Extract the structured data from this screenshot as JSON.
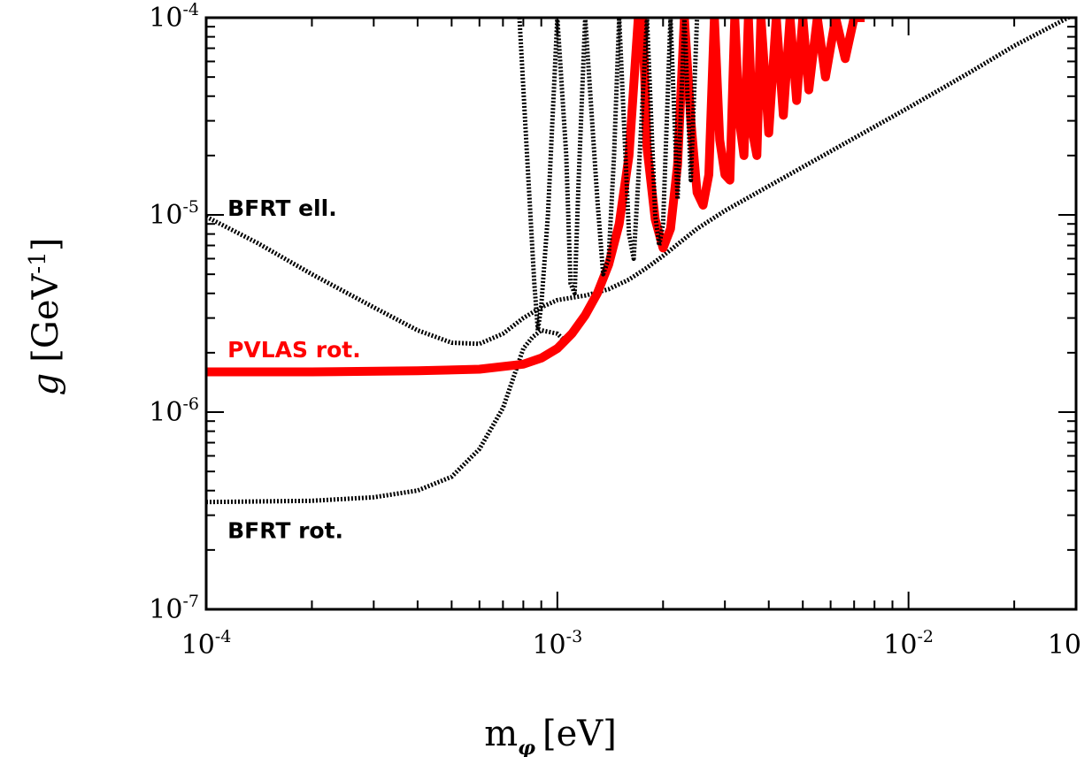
{
  "chart_data": {
    "type": "line",
    "xscale": "log",
    "yscale": "log",
    "xlim": [
      0.0001,
      0.03
    ],
    "ylim": [
      1e-07,
      0.0001
    ],
    "grid": false,
    "xlabel": {
      "main": "m",
      "sub": "φ",
      "unit": "[eV]"
    },
    "ylabel": {
      "main": "g",
      "unit": "[GeV",
      "sup": "-1",
      "close": "]"
    },
    "x_ticks": [
      {
        "value": 0.0001,
        "base": "10",
        "exp": "-4"
      },
      {
        "value": 0.001,
        "base": "10",
        "exp": "-3"
      },
      {
        "value": 0.01,
        "base": "10",
        "exp": "-2"
      },
      {
        "value": 0.03,
        "base": "10",
        "exp": ""
      }
    ],
    "y_ticks": [
      {
        "value": 1e-07,
        "base": "10",
        "exp": "-7"
      },
      {
        "value": 1e-06,
        "base": "10",
        "exp": "-6"
      },
      {
        "value": 1e-05,
        "base": "10",
        "exp": "-5"
      },
      {
        "value": 0.0001,
        "base": "10",
        "exp": "-4"
      }
    ],
    "annotations": [
      {
        "text": "BFRT ell.",
        "x": 0.000115,
        "y": 9.9e-06,
        "color": "#000000"
      },
      {
        "text": "PVLAS rot.",
        "x": 0.000115,
        "y": 1.9e-06,
        "color": "#ff0000"
      },
      {
        "text": "BFRT rot.",
        "x": 0.000115,
        "y": 2.3e-07,
        "color": "#000000"
      }
    ],
    "series": [
      {
        "label": "BFRT ell.",
        "color": "#000000",
        "style": "dotted",
        "x": [
          0.0001,
          0.00014,
          0.0002,
          0.0003,
          0.0004,
          0.0005,
          0.0006,
          0.0007,
          0.0008,
          0.0009,
          0.001,
          0.0012,
          0.0014,
          0.0016,
          0.0018,
          0.002,
          0.0025,
          0.003,
          0.004,
          0.005,
          0.007,
          0.01,
          0.015,
          0.02,
          0.03
        ],
        "y": [
          9.8e-06,
          7.2e-06,
          5e-06,
          3.4e-06,
          2.6e-06,
          2.25e-06,
          2.22e-06,
          2.5e-06,
          3e-06,
          3.4e-06,
          3.7e-06,
          3.9e-06,
          4.2e-06,
          4.7e-06,
          5.4e-06,
          6.2e-06,
          8.5e-06,
          1.05e-05,
          1.4e-05,
          1.75e-05,
          2.45e-05,
          3.5e-05,
          5.3e-05,
          7.2e-05,
          0.000105
        ]
      },
      {
        "label": "BFRT rot.",
        "color": "#000000",
        "style": "dotted",
        "x": [
          0.0001,
          0.0002,
          0.0003,
          0.0004,
          0.0005,
          0.0006,
          0.0007,
          0.00075,
          0.0008,
          0.00085,
          0.0009,
          0.001,
          0.00105
        ],
        "y": [
          3.5e-07,
          3.55e-07,
          3.7e-07,
          4e-07,
          4.7e-07,
          6.5e-07,
          1.05e-06,
          1.5e-06,
          2.1e-06,
          2.4e-06,
          2.6e-06,
          2.5e-06,
          2.3e-06
        ]
      },
      {
        "label": "PVLAS rot.",
        "color": "#ff0000",
        "style": "solid",
        "x": [
          0.0001,
          0.0002,
          0.0004,
          0.0006,
          0.0008,
          0.0009,
          0.001,
          0.0011,
          0.0012,
          0.0013,
          0.0014,
          0.0015,
          0.0016,
          0.0017,
          0.00175,
          0.0018,
          0.0019,
          0.002,
          0.0021,
          0.0022,
          0.0023,
          0.0024,
          0.0025,
          0.0026,
          0.0027,
          0.0028,
          0.0029,
          0.003,
          0.0031,
          0.0032,
          0.0033,
          0.0034,
          0.0035,
          0.0036,
          0.0037,
          0.0038,
          0.004,
          0.0042,
          0.0044,
          0.0046,
          0.0048,
          0.005,
          0.0052,
          0.0055,
          0.0058,
          0.0062,
          0.0066,
          0.007,
          0.0075
        ],
        "y": [
          1.6e-06,
          1.6e-06,
          1.62e-06,
          1.65e-06,
          1.75e-06,
          1.88e-06,
          2.1e-06,
          2.5e-06,
          3.1e-06,
          4e-06,
          5.6e-06,
          9e-06,
          2e-05,
          0.0001,
          0.0001,
          2.2e-05,
          9.5e-06,
          6.8e-06,
          8.5e-06,
          1.8e-05,
          0.0001,
          3e-05,
          1.3e-05,
          1.12e-05,
          1.6e-05,
          0.0001,
          2.4e-05,
          1.6e-05,
          1.5e-05,
          0.0001,
          3e-05,
          2e-05,
          0.0001,
          2.6e-05,
          2e-05,
          0.0001,
          2.6e-05,
          0.0001,
          3.2e-05,
          0.0001,
          3.8e-05,
          0.0001,
          4.3e-05,
          0.0001,
          5e-05,
          0.0001,
          6.2e-05,
          0.0001,
          0.0001
        ]
      },
      {
        "label": "",
        "color": "#000000",
        "style": "dotted",
        "x": [
          0.00078,
          0.00082,
          0.00086,
          0.00088,
          0.0009,
          0.00094,
          0.001,
          0.00106,
          0.00109,
          0.00112,
          0.00115,
          0.0012,
          0.0013,
          0.00135,
          0.0014,
          0.00145,
          0.0015,
          0.0016,
          0.00165,
          0.0017,
          0.0018,
          0.0019,
          0.00195,
          0.002,
          0.0021,
          0.0022,
          0.0023,
          0.0024,
          0.0025
        ],
        "y": [
          0.0001,
          2e-05,
          4.5e-06,
          2.6e-06,
          3.5e-06,
          1e-05,
          0.0001,
          2e-05,
          4.5e-06,
          4e-06,
          1.5e-05,
          0.0001,
          1.2e-05,
          5e-06,
          6e-06,
          2e-05,
          0.0001,
          8e-06,
          6e-06,
          1.5e-05,
          0.0001,
          1e-05,
          7e-06,
          9e-06,
          0.0001,
          1.2e-05,
          0.0001,
          1.5e-05,
          0.0001
        ]
      }
    ]
  }
}
